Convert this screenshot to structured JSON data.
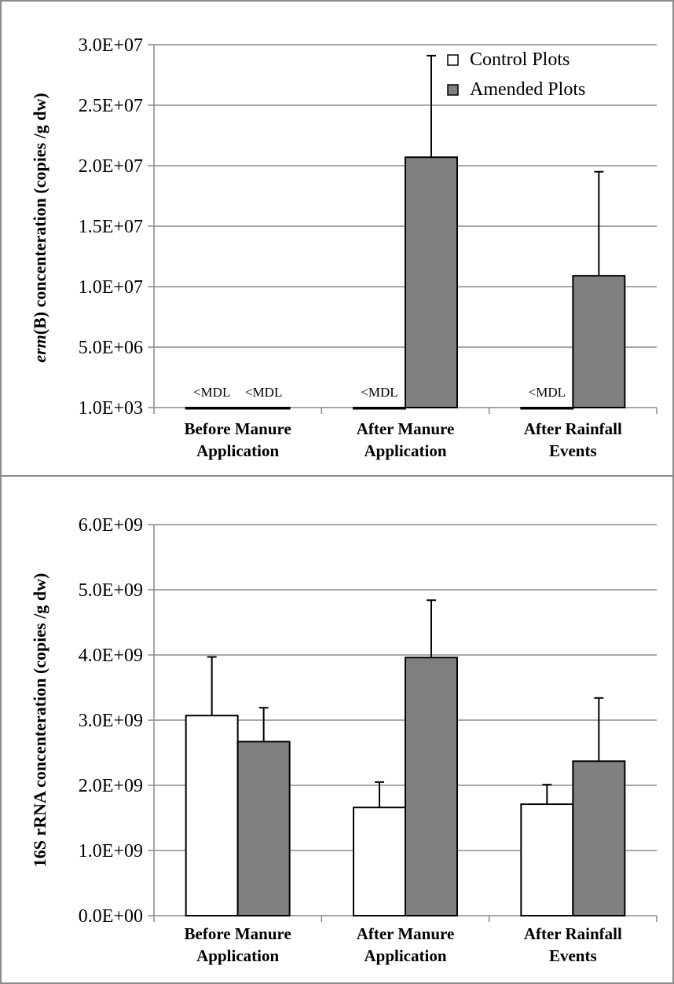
{
  "chart_data": [
    {
      "type": "bar",
      "ylabel_italic": "erm",
      "ylabel_rest": "(B) concenteration (copies /g dw)",
      "categories": [
        [
          "Before Manure",
          "Application"
        ],
        [
          "After Manure",
          "Application"
        ],
        [
          "After Rainfall",
          "Events"
        ]
      ],
      "yticks": [
        "1.0E+03",
        "5.0E+06",
        "1.0E+07",
        "1.5E+07",
        "2.0E+07",
        "2.5E+07",
        "3.0E+07"
      ],
      "ylim": [
        0,
        30000000
      ],
      "grid": true,
      "legend_position": "top-right",
      "series": [
        {
          "name": "Control Plots",
          "color": "#ffffff",
          "values": [
            0,
            0,
            0
          ],
          "errors": [
            0,
            0,
            0
          ],
          "labels": [
            "<MDL",
            "<MDL",
            "<MDL"
          ]
        },
        {
          "name": "Amended Plots",
          "color": "#808080",
          "values": [
            0,
            20700000,
            10900000
          ],
          "errors": [
            0,
            8400000,
            8600000
          ],
          "labels": [
            "<MDL",
            "",
            ""
          ]
        }
      ]
    },
    {
      "type": "bar",
      "ylabel_italic": "",
      "ylabel_rest": "16S rRNA concenteration (copies /g dw)",
      "categories": [
        [
          "Before Manure",
          "Application"
        ],
        [
          "After Manure",
          "Application"
        ],
        [
          "After Rainfall",
          "Events"
        ]
      ],
      "yticks": [
        "0.0E+00",
        "1.0E+09",
        "2.0E+09",
        "3.0E+09",
        "4.0E+09",
        "5.0E+09",
        "6.0E+09"
      ],
      "ylim": [
        0,
        6000000000
      ],
      "grid": true,
      "series": [
        {
          "name": "Control Plots",
          "color": "#ffffff",
          "values": [
            3070000000,
            1660000000,
            1710000000
          ],
          "errors": [
            900000000,
            390000000,
            300000000
          ]
        },
        {
          "name": "Amended Plots",
          "color": "#808080",
          "values": [
            2670000000,
            3960000000,
            2370000000
          ],
          "errors": [
            520000000,
            880000000,
            970000000
          ]
        }
      ]
    }
  ]
}
